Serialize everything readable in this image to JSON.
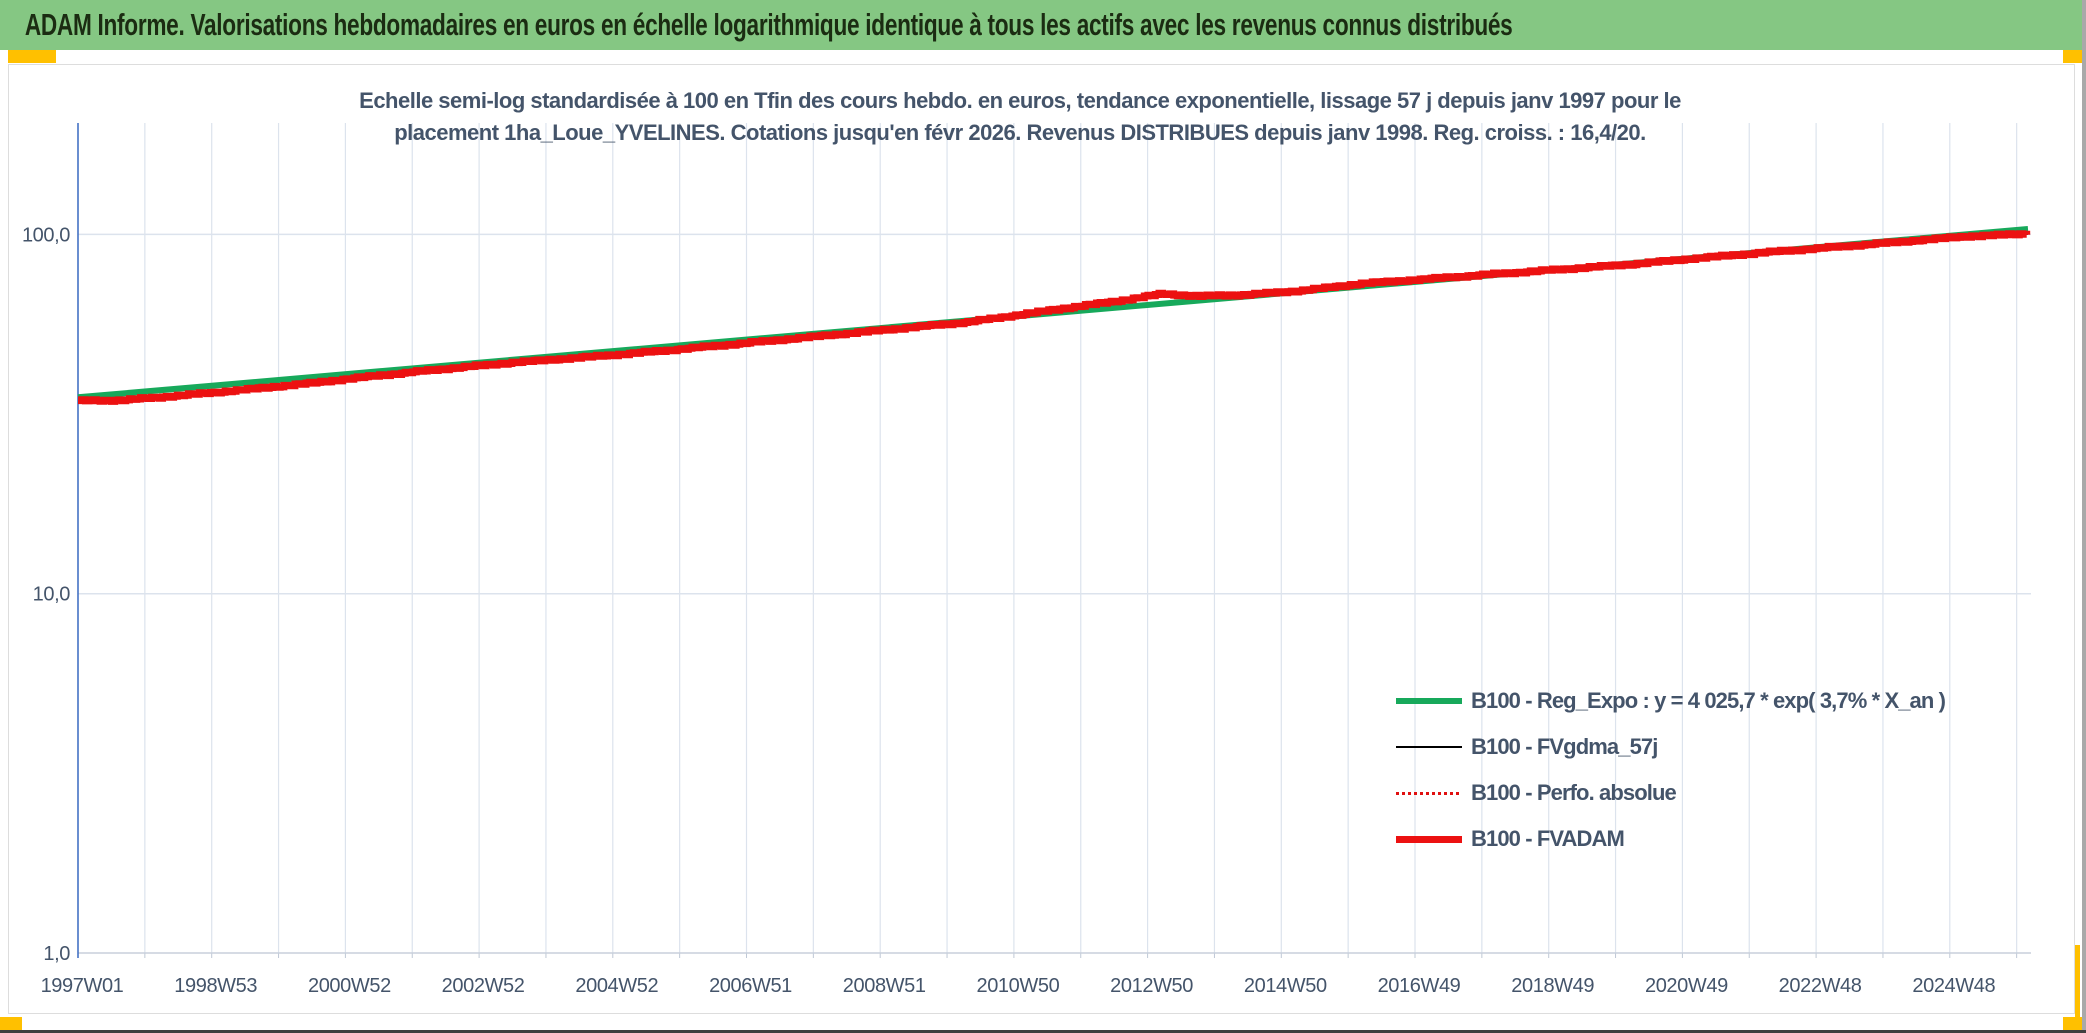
{
  "banner": {
    "title": "ADAM Informe. Valorisations hebdomadaires en euros en échelle logarithmique identique à tous les actifs avec les revenus connus distribués"
  },
  "chart": {
    "title_line1": "Echelle semi-log standardisée à 100 en Tfin des cours hebdo. en euros, tendance exponentielle, lissage 57 j depuis janv 1997 pour le",
    "title_line2": "placement 1ha_Loue_YVELINES. Cotations jusqu'en févr 2026. Revenus DISTRIBUES depuis janv 1998. Reg. croiss. : 16,4/20."
  },
  "colors": {
    "banner_bg": "#85C783",
    "banner_text": "#1B2C12",
    "corner_marker": "#FFC000",
    "title_text": "#44546A",
    "axis_line": "#4472C4",
    "gridline": "#DCE3ED",
    "baseline": "#C8CFDB",
    "tick": "#BFC8D6",
    "trend_green": "#17A95B",
    "series_red": "#EC1111",
    "series_black": "#000000"
  },
  "chart_data": {
    "type": "line",
    "scale": "semilog-y",
    "title": "Echelle semi-log standardisée à 100 en Tfin des cours hebdo. en euros, tendance exponentielle, lissage 57 j depuis janv 1997 pour le placement 1ha_Loue_YVELINES. Cotations jusqu'en févr 2026. Revenus DISTRIBUES depuis janv 1998. Reg. croiss. : 16,4/20.",
    "xlabel": "",
    "ylabel": "",
    "x_range": [
      1997.0,
      2026.17
    ],
    "ylim": [
      1,
      204
    ],
    "grid": true,
    "legend_position": "inside-right-bottom",
    "y_ticks": [
      {
        "label": "100,0",
        "value": 100
      },
      {
        "label": "10,0",
        "value": 10
      },
      {
        "label": "1,0",
        "value": 1
      }
    ],
    "x_tick_labels": [
      "1997W01",
      "1998W53",
      "2000W52",
      "2002W52",
      "2004W52",
      "2006W51",
      "2008W51",
      "2010W50",
      "2012W50",
      "2014W50",
      "2016W49",
      "2018W49",
      "2020W49",
      "2022W48",
      "2024W48"
    ],
    "x_tick_step_years": 2,
    "fvadam_points": [
      [
        1997.0,
        34.4
      ],
      [
        1997.7,
        34.6
      ],
      [
        1998.5,
        35.6
      ],
      [
        1999.5,
        37.0
      ],
      [
        2000.5,
        38.6
      ],
      [
        2001.5,
        40.5
      ],
      [
        2002.5,
        42.3
      ],
      [
        2003.5,
        44.0
      ],
      [
        2004.5,
        45.4
      ],
      [
        2005.5,
        47.0
      ],
      [
        2006.5,
        48.9
      ],
      [
        2007.5,
        50.9
      ],
      [
        2008.5,
        53.0
      ],
      [
        2009.5,
        55.2
      ],
      [
        2010.3,
        57.0
      ],
      [
        2011.0,
        59.5
      ],
      [
        2011.8,
        62.5
      ],
      [
        2012.6,
        65.5
      ],
      [
        2013.2,
        68.3
      ],
      [
        2013.8,
        67.3
      ],
      [
        2014.5,
        68.0
      ],
      [
        2015.3,
        69.8
      ],
      [
        2016.2,
        73.0
      ],
      [
        2017.2,
        75.2
      ],
      [
        2018.2,
        77.6
      ],
      [
        2019.2,
        80.0
      ],
      [
        2020.2,
        82.5
      ],
      [
        2021.2,
        85.8
      ],
      [
        2022.2,
        89.0
      ],
      [
        2023.2,
        92.0
      ],
      [
        2024.2,
        95.2
      ],
      [
        2025.2,
        98.6
      ],
      [
        2026.17,
        100.5
      ]
    ],
    "series": [
      {
        "name": "B100 - Reg_Expo : y = 4 025,7 * exp( 3,7% *  X_an )",
        "color": "#17A95B",
        "width": 6,
        "style": "solid",
        "render": "trend",
        "points": [
          [
            1997.0,
            35.2
          ],
          [
            2026.17,
            103.5
          ]
        ]
      },
      {
        "name": "B100 - FVgdma_57j",
        "color": "#000000",
        "width": 2.5,
        "style": "solid",
        "render": "line",
        "points": "fvadam_points"
      },
      {
        "name": "B100 - Perfo. absolue",
        "color": "#E01010",
        "width": 2,
        "style": "dotted",
        "render": "line",
        "points": "fvadam_points"
      },
      {
        "name": "B100 - FVADAM",
        "color": "#EC1111",
        "width": 7,
        "style": "solid",
        "render": "steps",
        "points": "fvadam_points"
      }
    ]
  }
}
